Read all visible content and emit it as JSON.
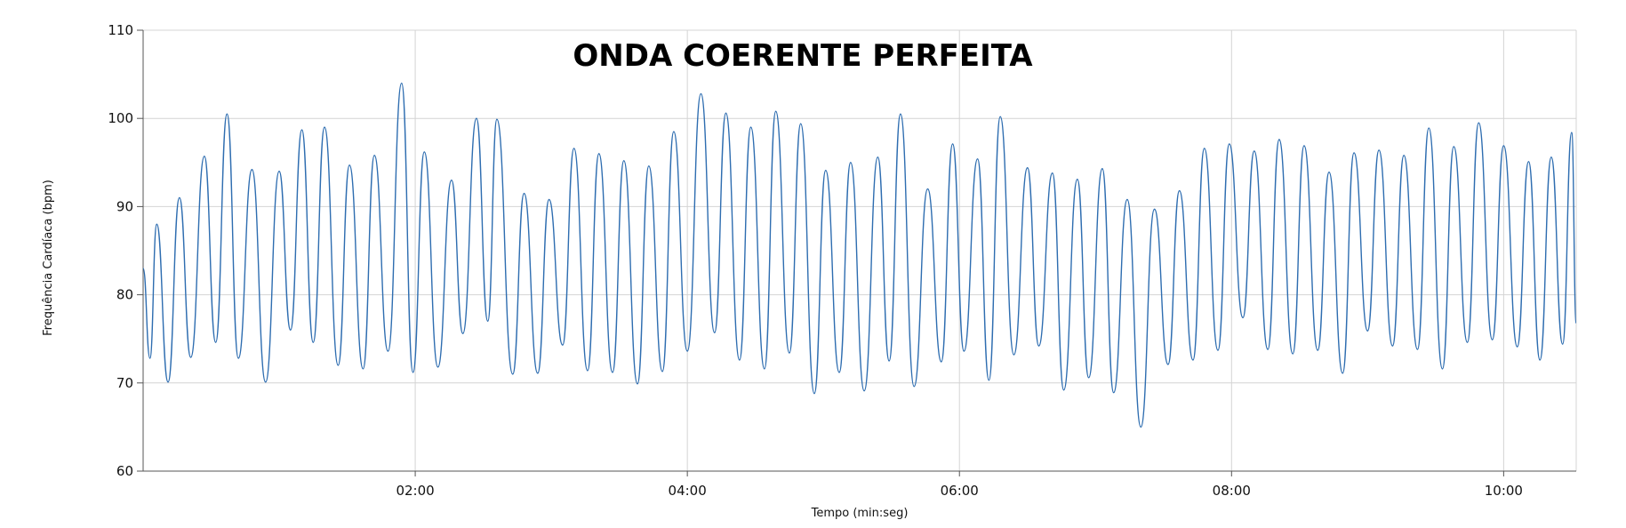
{
  "chart_data": {
    "type": "line",
    "title": "ONDA COERENTE PERFEITA",
    "xlabel": "Tempo (min:seg)",
    "ylabel": "Frequência Cardíaca (bpm)",
    "xlim": [
      "00:00",
      "10:32"
    ],
    "ylim": [
      60,
      110
    ],
    "yticks": [
      60,
      70,
      80,
      90,
      100,
      110
    ],
    "xticks": [
      "02:00",
      "04:00",
      "06:00",
      "08:00",
      "10:00"
    ],
    "grid": true,
    "legend": "none",
    "line_color": "#2e6db0",
    "series": [
      {
        "peaks": [
          [
            "00:00",
            83
          ],
          [
            "00:06",
            88
          ],
          [
            "00:16",
            91
          ],
          [
            "00:27",
            95.7
          ],
          [
            "00:37",
            100.5
          ],
          [
            "00:48",
            94.2
          ],
          [
            "00:60",
            94
          ],
          [
            "01:10",
            98.7
          ],
          [
            "01:20",
            99
          ],
          [
            "01:31",
            94.7
          ],
          [
            "01:42",
            95.8
          ],
          [
            "01:54",
            104
          ],
          [
            "02:04",
            96.2
          ],
          [
            "02:16",
            93
          ],
          [
            "02:27",
            100
          ],
          [
            "02:36",
            99.9
          ],
          [
            "02:48",
            91.5
          ],
          [
            "02:59",
            90.8
          ],
          [
            "03:10",
            96.6
          ],
          [
            "03:21",
            96
          ],
          [
            "03:32",
            95.2
          ],
          [
            "03:43",
            94.6
          ],
          [
            "03:54",
            98.5
          ],
          [
            "04:06",
            102.8
          ],
          [
            "04:17",
            100.6
          ],
          [
            "04:28",
            99
          ],
          [
            "04:39",
            100.8
          ],
          [
            "04:50",
            99.4
          ],
          [
            "05:01",
            94.1
          ],
          [
            "05:12",
            95
          ],
          [
            "05:24",
            95.6
          ],
          [
            "05:34",
            100.5
          ],
          [
            "05:46",
            92
          ],
          [
            "05:57",
            97.1
          ],
          [
            "06:08",
            95.4
          ],
          [
            "06:18",
            100.2
          ],
          [
            "06:30",
            94.4
          ],
          [
            "06:41",
            93.8
          ],
          [
            "06:52",
            93.1
          ],
          [
            "07:03",
            94.3
          ],
          [
            "07:14",
            90.8
          ],
          [
            "07:26",
            89.7
          ],
          [
            "07:37",
            91.8
          ],
          [
            "07:48",
            96.6
          ],
          [
            "07:59",
            97.1
          ],
          [
            "08:10",
            96.3
          ],
          [
            "08:21",
            97.6
          ],
          [
            "08:32",
            96.9
          ],
          [
            "08:43",
            93.9
          ],
          [
            "08:54",
            96.1
          ],
          [
            "09:05",
            96.4
          ],
          [
            "09:16",
            95.8
          ],
          [
            "09:27",
            98.9
          ],
          [
            "09:38",
            96.8
          ],
          [
            "09:49",
            99.5
          ],
          [
            "10:00",
            96.9
          ],
          [
            "10:11",
            95.1
          ],
          [
            "10:21",
            95.6
          ],
          [
            "10:30",
            98.4
          ]
        ],
        "troughs": [
          [
            "00:03",
            72.8
          ],
          [
            "00:11",
            70.1
          ],
          [
            "00:21",
            72.9
          ],
          [
            "00:32",
            74.6
          ],
          [
            "00:42",
            72.8
          ],
          [
            "00:54",
            70.1
          ],
          [
            "01:05",
            76
          ],
          [
            "01:15",
            74.6
          ],
          [
            "01:26",
            72
          ],
          [
            "01:37",
            71.6
          ],
          [
            "01:48",
            73.6
          ],
          [
            "01:59",
            71.2
          ],
          [
            "02:10",
            71.8
          ],
          [
            "02:21",
            75.6
          ],
          [
            "02:32",
            77
          ],
          [
            "02:43",
            71
          ],
          [
            "02:54",
            71.1
          ],
          [
            "03:05",
            74.3
          ],
          [
            "03:16",
            71.4
          ],
          [
            "03:27",
            71.2
          ],
          [
            "03:38",
            69.9
          ],
          [
            "03:49",
            71.3
          ],
          [
            "04:00",
            73.6
          ],
          [
            "04:12",
            75.7
          ],
          [
            "04:23",
            72.6
          ],
          [
            "04:34",
            71.6
          ],
          [
            "04:45",
            73.4
          ],
          [
            "04:56",
            68.8
          ],
          [
            "05:07",
            71.2
          ],
          [
            "05:18",
            69.1
          ],
          [
            "05:29",
            72.5
          ],
          [
            "05:40",
            69.6
          ],
          [
            "05:52",
            72.4
          ],
          [
            "06:02",
            73.6
          ],
          [
            "06:13",
            70.3
          ],
          [
            "06:24",
            73.2
          ],
          [
            "06:35",
            74.2
          ],
          [
            "06:46",
            69.2
          ],
          [
            "06:57",
            70.6
          ],
          [
            "07:08",
            68.9
          ],
          [
            "07:20",
            65
          ],
          [
            "07:32",
            72.1
          ],
          [
            "07:43",
            72.6
          ],
          [
            "07:54",
            73.7
          ],
          [
            "08:05",
            77.4
          ],
          [
            "08:16",
            73.8
          ],
          [
            "08:27",
            73.3
          ],
          [
            "08:38",
            73.7
          ],
          [
            "08:49",
            71.1
          ],
          [
            "09:00",
            75.9
          ],
          [
            "09:11",
            74.2
          ],
          [
            "09:22",
            73.8
          ],
          [
            "09:33",
            71.6
          ],
          [
            "09:44",
            74.6
          ],
          [
            "09:55",
            74.9
          ],
          [
            "10:06",
            74.1
          ],
          [
            "10:16",
            72.6
          ],
          [
            "10:26",
            74.4
          ],
          [
            "10:32",
            76.8
          ]
        ]
      }
    ]
  }
}
